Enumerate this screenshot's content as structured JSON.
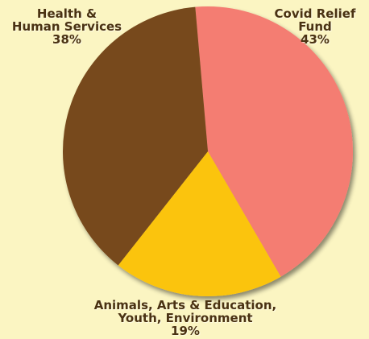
{
  "chart_data": {
    "type": "pie",
    "slices": [
      {
        "label_lines": [
          "Covid Relief",
          "Fund"
        ],
        "value": 43,
        "value_label": "43%",
        "color": "#f47d72"
      },
      {
        "label_lines": [
          "Animals, Arts & Education,",
          "Youth, Environment"
        ],
        "value": 19,
        "value_label": "19%",
        "color": "#fbc40f"
      },
      {
        "label_lines": [
          "Health &",
          "Human Services"
        ],
        "value": 38,
        "value_label": "38%",
        "color": "#77491b"
      }
    ]
  }
}
